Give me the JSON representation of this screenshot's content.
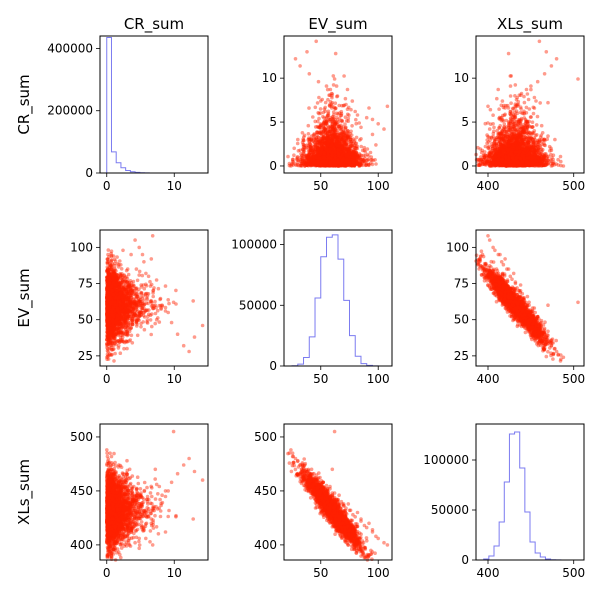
{
  "chart_data": {
    "type": "scatter-matrix",
    "variables": [
      "CR_sum",
      "EV_sum",
      "XLs_sum"
    ],
    "column_titles": [
      "CR_sum",
      "EV_sum",
      "XLs_sum"
    ],
    "row_labels": [
      "CR_sum",
      "EV_sum",
      "XLs_sum"
    ],
    "colors": {
      "scatter": "#ff2200",
      "histogram": "#7b7bf0",
      "axes": "#000000"
    },
    "axes": {
      "CR_sum": {
        "range": [
          -1,
          15
        ],
        "ticks": [
          0,
          10
        ],
        "tick_labels": [
          "0",
          "10"
        ]
      },
      "EV_sum": {
        "range": [
          18,
          112
        ],
        "ticks": [
          25,
          50,
          75,
          100
        ],
        "tick_labels": [
          "25",
          "50",
          "75",
          "100"
        ],
        "x_ticks": [
          50,
          100
        ],
        "x_tick_labels": [
          "50",
          "100"
        ]
      },
      "XLs_sum": {
        "range": [
          386,
          512
        ],
        "ticks": [
          400,
          450,
          500
        ],
        "tick_labels": [
          "400",
          "450",
          "500"
        ],
        "x_ticks": [
          400,
          500
        ],
        "x_tick_labels": [
          "400",
          "500"
        ]
      }
    },
    "panels": [
      {
        "row": 0,
        "col": 0,
        "type": "histogram",
        "variable": "CR_sum",
        "x_range": [
          -1,
          15
        ],
        "y_range": [
          0,
          440000
        ],
        "y_ticks": [
          0,
          200000,
          400000
        ],
        "y_tick_labels": [
          "0",
          "200000",
          "400000"
        ],
        "bin_edges": [
          0,
          0.7,
          1.4,
          2.1,
          2.8,
          3.5,
          4.2,
          4.9,
          5.6,
          6.3,
          7.0,
          7.7,
          8.4,
          9.1,
          9.8,
          10.5,
          11.2,
          11.9,
          12.6,
          13.3,
          14.0
        ],
        "counts": [
          435000,
          68000,
          33000,
          17000,
          8000,
          4000,
          2000,
          1000,
          500,
          200,
          100,
          60,
          30,
          15,
          8,
          4,
          2,
          1,
          1,
          0
        ]
      },
      {
        "row": 0,
        "col": 1,
        "type": "scatter",
        "x": "EV_sum",
        "y": "CR_sum",
        "y_ticks": [
          0,
          5,
          10
        ],
        "y_tick_labels": [
          "0",
          "5",
          "10"
        ],
        "y_range": [
          -0.8,
          14.8
        ]
      },
      {
        "row": 0,
        "col": 2,
        "type": "scatter",
        "x": "XLs_sum",
        "y": "CR_sum",
        "y_ticks": [
          0,
          5,
          10
        ],
        "y_tick_labels": [
          "0",
          "5",
          "10"
        ],
        "y_range": [
          -0.8,
          14.8
        ]
      },
      {
        "row": 1,
        "col": 0,
        "type": "scatter",
        "x": "CR_sum",
        "y": "EV_sum"
      },
      {
        "row": 1,
        "col": 1,
        "type": "histogram",
        "variable": "EV_sum",
        "x_range": [
          18,
          112
        ],
        "y_range": [
          0,
          112000
        ],
        "y_ticks": [
          0,
          50000,
          100000
        ],
        "y_tick_labels": [
          "0",
          "50000",
          "100000"
        ],
        "bin_edges": [
          25,
          30,
          35,
          40,
          45,
          50,
          55,
          60,
          65,
          70,
          75,
          80,
          85,
          90,
          95,
          100
        ],
        "counts": [
          200,
          1500,
          7000,
          24000,
          56000,
          90000,
          106000,
          108000,
          88000,
          54000,
          25000,
          8000,
          2000,
          500,
          100
        ]
      },
      {
        "row": 1,
        "col": 2,
        "type": "scatter",
        "x": "XLs_sum",
        "y": "EV_sum"
      },
      {
        "row": 2,
        "col": 0,
        "type": "scatter",
        "x": "CR_sum",
        "y": "XLs_sum"
      },
      {
        "row": 2,
        "col": 1,
        "type": "scatter",
        "x": "EV_sum",
        "y": "XLs_sum"
      },
      {
        "row": 2,
        "col": 2,
        "type": "histogram",
        "variable": "XLs_sum",
        "x_range": [
          386,
          512
        ],
        "y_range": [
          0,
          136000
        ],
        "y_ticks": [
          0,
          50000,
          100000
        ],
        "y_tick_labels": [
          "0",
          "50000",
          "100000"
        ],
        "bin_edges": [
          395,
          401,
          407,
          413,
          419,
          425,
          431,
          437,
          443,
          449,
          455,
          461,
          467,
          473,
          479,
          485,
          491
        ],
        "counts": [
          1000,
          4000,
          14000,
          38000,
          78000,
          126000,
          128000,
          92000,
          48000,
          18000,
          7000,
          3000,
          1000,
          300,
          100,
          30
        ]
      }
    ],
    "scatter_points": {
      "CR_sum": [
        0.1,
        0.3,
        0.6,
        1.0,
        1.5,
        2.0,
        2.6,
        3.1,
        3.6,
        4.2,
        4.8,
        5.5,
        6.2,
        7.0,
        7.9,
        8.7,
        9.6,
        10.5,
        11.4,
        12.2,
        13.0,
        14.2,
        0.2,
        0.5,
        0.9,
        1.3,
        1.8,
        2.4,
        3.0,
        3.4,
        4.0,
        4.5,
        5.1,
        5.8,
        6.6,
        7.4,
        8.2,
        9.1,
        0.4,
        1.1,
        2.2,
        3.3,
        4.4,
        5.3,
        6.8,
        0.0,
        0.0,
        0.1,
        0.2,
        0.8,
        1.6,
        2.8,
        3.8,
        5.0,
        6.0,
        7.2,
        9.9,
        12.8
      ],
      "EV_sum": [
        26,
        34,
        44,
        52,
        60,
        68,
        76,
        85,
        95,
        105,
        100,
        90,
        80,
        72,
        64,
        56,
        48,
        40,
        32,
        28,
        38,
        46,
        54,
        62,
        70,
        78,
        88,
        98,
        30,
        42,
        58,
        66,
        74,
        82,
        92,
        50,
        60,
        55,
        65,
        45,
        35,
        75,
        85,
        95,
        108,
        24,
        36,
        58,
        62,
        70,
        48,
        52,
        56,
        60,
        64,
        60,
        62,
        63
      ],
      "XLs_sum": [
        482,
        476,
        466,
        458,
        448,
        440,
        432,
        422,
        412,
        402,
        406,
        416,
        426,
        434,
        442,
        450,
        458,
        466,
        474,
        480,
        468,
        460,
        452,
        444,
        436,
        428,
        418,
        408,
        478,
        470,
        454,
        446,
        438,
        430,
        420,
        456,
        446,
        450,
        440,
        462,
        472,
        432,
        424,
        414,
        400,
        488,
        474,
        452,
        448,
        438,
        462,
        458,
        452,
        446,
        440,
        470,
        505,
        424
      ]
    }
  }
}
